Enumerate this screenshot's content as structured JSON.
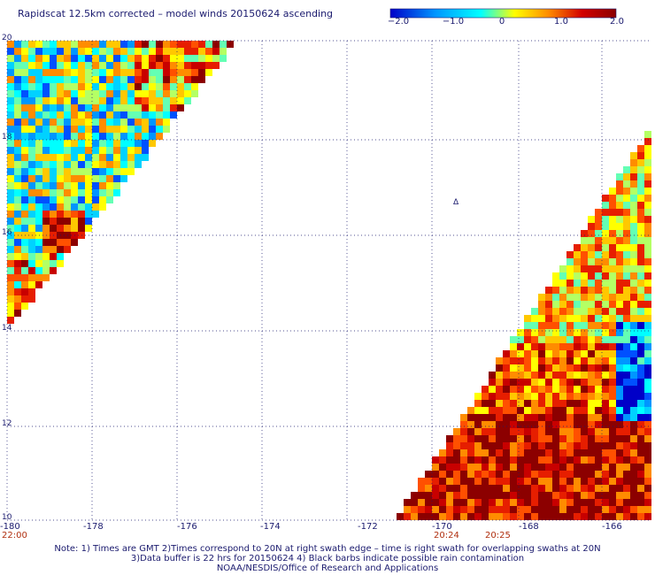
{
  "title": "Rapidscat 12.5km corrected – model winds 20150624 ascending",
  "colorbar": {
    "labels": [
      "−2.0",
      "−1.0",
      "0",
      "1.0",
      "2.0"
    ],
    "range": [
      -2.0,
      2.0
    ],
    "colors": [
      "#0000c8",
      "#0096ff",
      "#00ffff",
      "#ffff00",
      "#ff8c00",
      "#d20000",
      "#8c0000"
    ]
  },
  "map": {
    "lon_range": [
      -180,
      -165
    ],
    "lat_range": [
      10,
      20
    ],
    "lon_ticks": [
      "-180",
      "-178",
      "-176",
      "-174",
      "-172",
      "-170",
      "-168",
      "-166"
    ],
    "lat_ticks": [
      "20",
      "18",
      "16",
      "14",
      "12",
      "10"
    ],
    "swath_times": [
      "22:00",
      "20:24",
      "20:25"
    ],
    "symbol_glyph": "Δ"
  },
  "notes": [
    "Note: 1) Times are GMT 2)Times correspond to 20N at right swath edge – time is right swath for overlapping swaths at 20N",
    "3)Data buffer is 22 hrs for 20150624 4) Black barbs indicate possible rain contamination",
    "NOAA/NESDIS/Office of Research and Applications"
  ]
}
